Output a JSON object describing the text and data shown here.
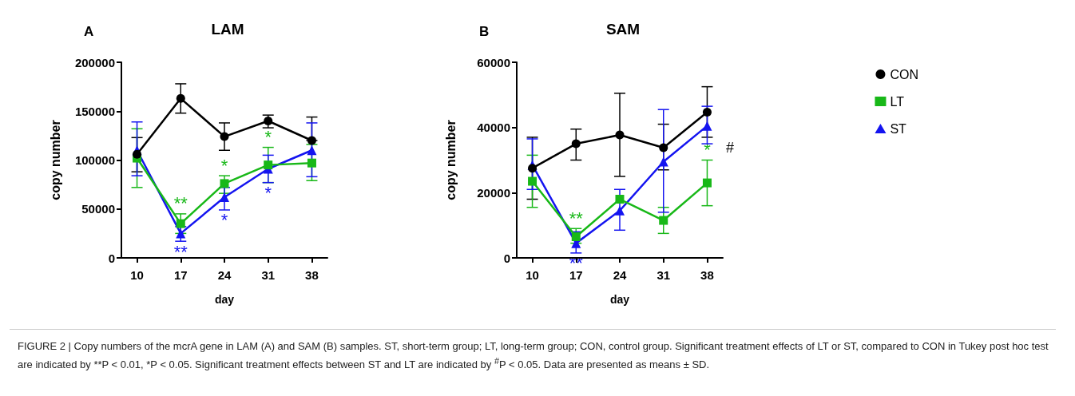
{
  "chart_data": [
    {
      "type": "line",
      "title": "LAM",
      "xlabel": "day",
      "ylabel": "copy number",
      "x": [
        10,
        17,
        24,
        31,
        38
      ],
      "xlim": [
        7.5,
        40.5
      ],
      "xticks": [
        10,
        17,
        24,
        31,
        38
      ],
      "ylim": [
        0,
        200000
      ],
      "yticks": [
        0,
        50000,
        100000,
        150000,
        200000
      ],
      "grid": false,
      "legend": false,
      "series": [
        {
          "color": "#000000",
          "marker": "circle",
          "values": [
            106000,
            163000,
            124000,
            140000,
            120000
          ],
          "errors": [
            [
              88000,
              123000
            ],
            [
              148000,
              178000
            ],
            [
              110000,
              138000
            ],
            [
              133000,
              146000
            ],
            [
              120000,
              144000
            ]
          ]
        },
        {
          "color": "#18b818",
          "marker": "square",
          "values": [
            102000,
            35000,
            76000,
            95000,
            97000
          ],
          "errors": [
            [
              72000,
              132000
            ],
            [
              25000,
              45000
            ],
            [
              66000,
              84000
            ],
            [
              77000,
              113000
            ],
            [
              79000,
              116000
            ]
          ]
        },
        {
          "color": "#1414f0",
          "marker": "triangle",
          "values": [
            110000,
            25000,
            62000,
            91000,
            110000
          ],
          "errors": [
            [
              84000,
              139000
            ],
            [
              17000,
              32000
            ],
            [
              49000,
              72000
            ],
            [
              77000,
              105000
            ],
            [
              83000,
              138000
            ]
          ]
        }
      ],
      "annotations": [
        "A",
        {
          "text": "**",
          "x": 17,
          "y": 45000
        },
        {
          "text": "**",
          "x": 17,
          "y": 17000
        },
        {
          "text": "*",
          "x": 24,
          "y": 84000
        },
        {
          "text": "*",
          "x": 24,
          "y": 49000
        },
        {
          "text": "*",
          "x": 31,
          "y": 113000
        },
        {
          "text": "*",
          "x": 31,
          "y": 77000
        }
      ]
    },
    {
      "type": "line",
      "title": "SAM",
      "xlabel": "day",
      "ylabel": "copy number",
      "x": [
        10,
        17,
        24,
        31,
        38
      ],
      "xlim": [
        7.5,
        40.5
      ],
      "xticks": [
        10,
        17,
        24,
        31,
        38
      ],
      "ylim": [
        0,
        60000
      ],
      "yticks": [
        0,
        20000,
        40000,
        60000
      ],
      "grid": false,
      "legend": "right",
      "series": [
        {
          "name": "CON",
          "color": "#000000",
          "marker": "circle",
          "values": [
            27500,
            35000,
            37700,
            33800,
            44700
          ],
          "errors": [
            [
              18000,
              37000
            ],
            [
              30000,
              39500
            ],
            [
              25000,
              50500
            ],
            [
              27000,
              41000
            ],
            [
              37000,
              52500
            ]
          ]
        },
        {
          "name": "LT",
          "color": "#18b818",
          "marker": "square",
          "values": [
            23500,
            6500,
            18000,
            11500,
            23000
          ],
          "errors": [
            [
              15500,
              31500
            ],
            [
              4500,
              9000
            ],
            null,
            [
              7500,
              15500
            ],
            [
              16000,
              30000
            ]
          ]
        },
        {
          "name": "ST",
          "color": "#1414f0",
          "marker": "triangle",
          "values": [
            28500,
            4500,
            14500,
            29500,
            40500
          ],
          "errors": [
            [
              21000,
              36500
            ],
            [
              1500,
              8000
            ],
            [
              8500,
              21000
            ],
            [
              14000,
              45500
            ],
            [
              35000,
              46500
            ]
          ]
        }
      ],
      "annotations": [
        "B",
        {
          "text": "**",
          "x": 17,
          "y": 9000
        },
        {
          "text": "**",
          "x": 17,
          "y": 1500
        },
        {
          "text": "*",
          "x": 38,
          "y": 30000
        },
        "#",
        "FIGURE 2 | Copy numbers of the mcrA gene in LAM (A) and SAM (B) samples. ST, short-term group; LT, long-term group; CON, control group. Significant treatment effects of LT or ST, compared to CON in Tukey post hoc test are indicated by **P < 0.01, *P < 0.05. Significant treatment effects between ST and LT are indicated by $^{#}$P < 0.05. Data are presented as means ± SD."
      ]
    }
  ]
}
